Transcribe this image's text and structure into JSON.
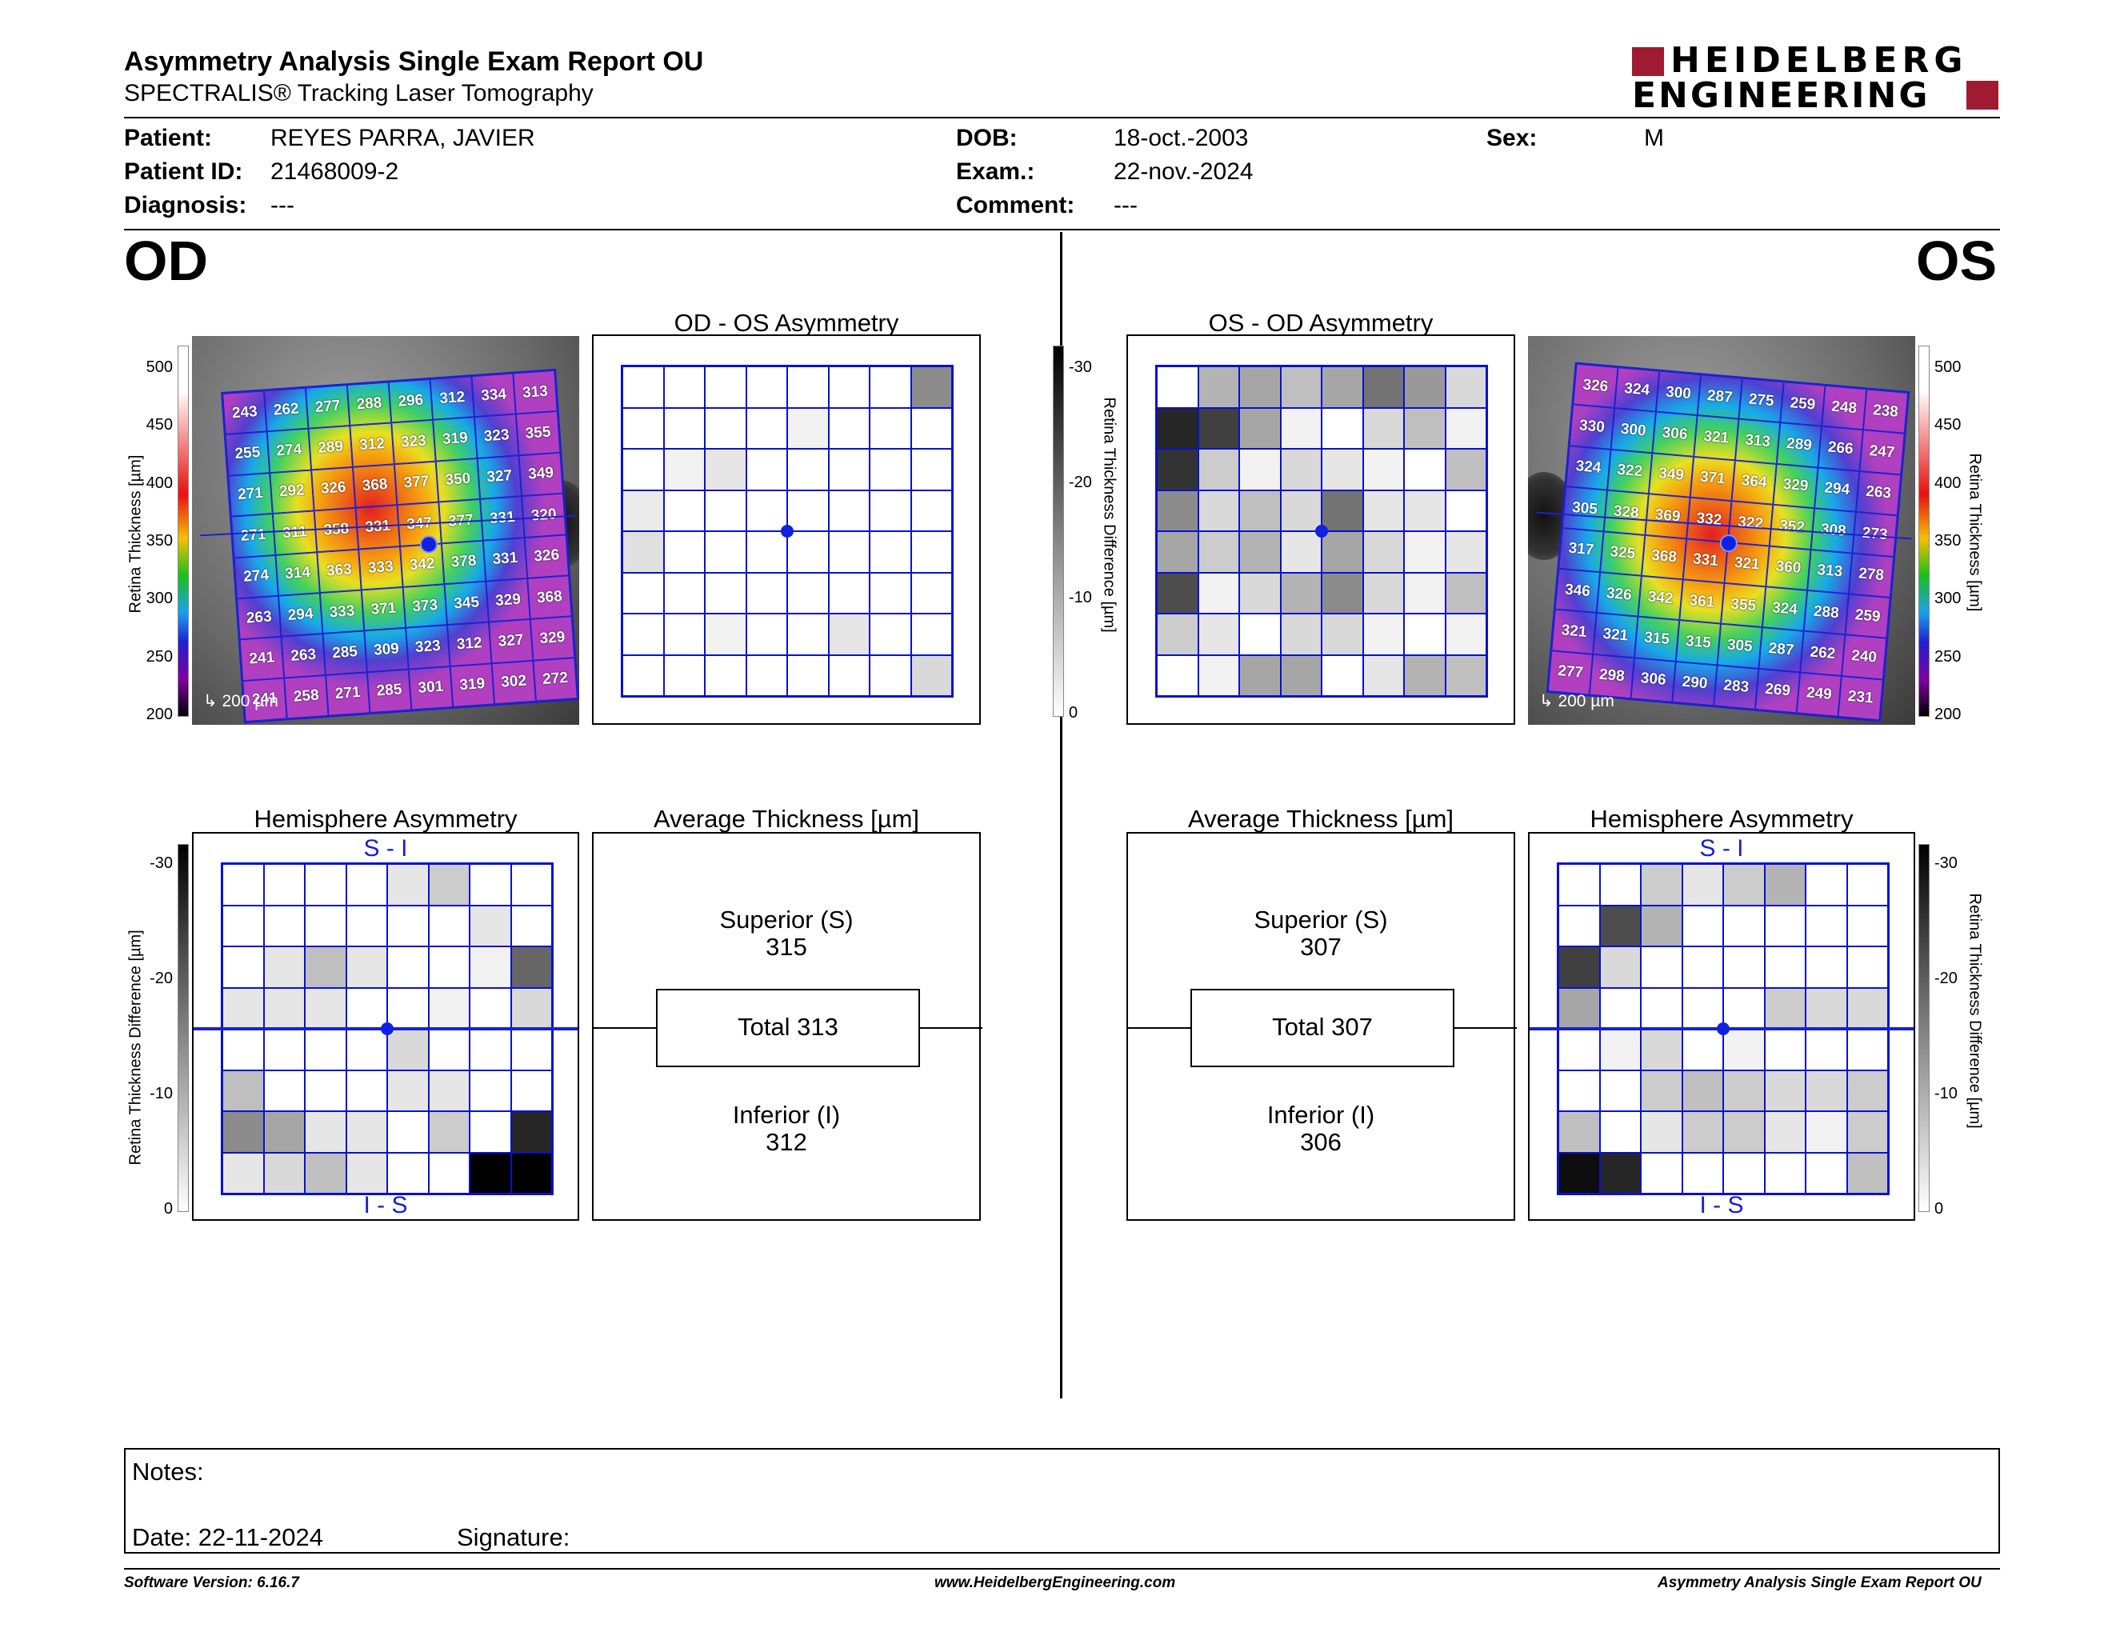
{
  "header": {
    "title": "Asymmetry Analysis Single Exam Report OU",
    "subtitle": "SPECTRALIS® Tracking Laser Tomography",
    "logo_line1": "HEIDELBERG",
    "logo_line2": "ENGINEERING"
  },
  "patient": {
    "patient_label": "Patient:",
    "patient_value": "REYES PARRA, JAVIER",
    "id_label": "Patient ID:",
    "id_value": "21468009-2",
    "diagnosis_label": "Diagnosis:",
    "diagnosis_value": "---",
    "dob_label": "DOB:",
    "dob_value": "18-oct.-2003",
    "exam_label": "Exam.:",
    "exam_value": "22-nov.-2024",
    "comment_label": "Comment:",
    "comment_value": "---",
    "sex_label": "Sex:",
    "sex_value": "M"
  },
  "eyes": {
    "left": "OD",
    "right": "OS"
  },
  "panels": {
    "od_os_title": "OD - OS Asymmetry",
    "os_od_title": "OS - OD Asymmetry",
    "hemi_title": "Hemisphere Asymmetry",
    "avg_title": "Average Thickness [µm]",
    "s_i": "S - I",
    "i_s": "I - S"
  },
  "scales": {
    "thickness_label": "Retina Thickness [µm]",
    "thickness_ticks": [
      "500",
      "450",
      "400",
      "350",
      "300",
      "250",
      "200"
    ],
    "diff_label": "Retina Thickness Difference [µm]",
    "diff_ticks": [
      "-30",
      "-20",
      "-10",
      "0"
    ],
    "scalebar": "200 µm"
  },
  "od": {
    "thickness_grid": [
      [
        243,
        262,
        277,
        288,
        296,
        312,
        334,
        313
      ],
      [
        255,
        274,
        289,
        312,
        323,
        319,
        323,
        355
      ],
      [
        271,
        292,
        326,
        368,
        377,
        350,
        327,
        349
      ],
      [
        271,
        311,
        358,
        331,
        347,
        377,
        331,
        320
      ],
      [
        274,
        314,
        363,
        333,
        342,
        378,
        331,
        326
      ],
      [
        263,
        294,
        333,
        371,
        373,
        345,
        329,
        368
      ],
      [
        241,
        263,
        285,
        309,
        323,
        312,
        327,
        329
      ],
      [
        241,
        258,
        271,
        285,
        301,
        319,
        302,
        272
      ]
    ],
    "asymmetry_shade": [
      [
        0,
        0,
        0,
        0,
        0,
        0,
        0,
        0.45
      ],
      [
        0,
        0,
        0,
        0,
        0.05,
        0,
        0,
        0
      ],
      [
        0,
        0.05,
        0.1,
        0,
        0,
        0,
        0,
        0
      ],
      [
        0.08,
        0,
        0,
        0,
        0,
        0,
        0,
        0
      ],
      [
        0.12,
        0,
        0,
        0,
        0,
        0,
        0,
        0
      ],
      [
        0,
        0,
        0,
        0,
        0,
        0,
        0,
        0
      ],
      [
        0,
        0,
        0.05,
        0,
        0,
        0.1,
        0,
        0
      ],
      [
        0,
        0,
        0,
        0,
        0,
        0,
        0,
        0.15
      ]
    ],
    "hemi_shade": [
      [
        0,
        0,
        0,
        0,
        0.1,
        0.2,
        0,
        0
      ],
      [
        0,
        0,
        0,
        0,
        0,
        0,
        0.1,
        0
      ],
      [
        0,
        0.1,
        0.25,
        0.1,
        0,
        0,
        0.05,
        0.6
      ],
      [
        0.1,
        0.1,
        0.1,
        0,
        0,
        0.05,
        0,
        0.15
      ],
      [
        0,
        0,
        0,
        0,
        0.15,
        0,
        0,
        0
      ],
      [
        0.25,
        0,
        0,
        0,
        0.1,
        0.1,
        0,
        0
      ],
      [
        0.45,
        0.35,
        0.1,
        0.1,
        0,
        0.2,
        0,
        0.85
      ],
      [
        0.1,
        0.15,
        0.25,
        0.1,
        0,
        0,
        1,
        1
      ]
    ],
    "avg": {
      "superior_label": "Superior (S)",
      "superior_value": "315",
      "total": "Total 313",
      "inferior_label": "Inferior (I)",
      "inferior_value": "312"
    }
  },
  "os": {
    "thickness_grid": [
      [
        326,
        324,
        300,
        287,
        275,
        259,
        248,
        238
      ],
      [
        330,
        300,
        306,
        321,
        313,
        289,
        266,
        247
      ],
      [
        324,
        322,
        349,
        371,
        364,
        329,
        294,
        263
      ],
      [
        305,
        328,
        369,
        332,
        322,
        352,
        308,
        273
      ],
      [
        317,
        325,
        368,
        331,
        321,
        360,
        313,
        278
      ],
      [
        346,
        326,
        342,
        361,
        355,
        324,
        288,
        259
      ],
      [
        321,
        321,
        315,
        315,
        305,
        287,
        262,
        240
      ],
      [
        277,
        298,
        306,
        290,
        283,
        269,
        249,
        231
      ]
    ],
    "asymmetry_shade": [
      [
        0,
        0.3,
        0.35,
        0.25,
        0.35,
        0.55,
        0.4,
        0.15
      ],
      [
        0.85,
        0.75,
        0.35,
        0.05,
        0,
        0.15,
        0.25,
        0.05
      ],
      [
        0.8,
        0.2,
        0.05,
        0.15,
        0.1,
        0.05,
        0,
        0.25
      ],
      [
        0.45,
        0.15,
        0.25,
        0.15,
        0.55,
        0.1,
        0.1,
        0
      ],
      [
        0.35,
        0.2,
        0.3,
        0.1,
        0.35,
        0.15,
        0.05,
        0.1
      ],
      [
        0.7,
        0.05,
        0.15,
        0.3,
        0.45,
        0.15,
        0.05,
        0.25
      ],
      [
        0.2,
        0.1,
        0,
        0.15,
        0.15,
        0.05,
        0,
        0.05
      ],
      [
        0,
        0.05,
        0.35,
        0.35,
        0,
        0.1,
        0.3,
        0.25
      ]
    ],
    "hemi_shade": [
      [
        0,
        0,
        0.2,
        0.1,
        0.2,
        0.3,
        0,
        0
      ],
      [
        0,
        0.7,
        0.3,
        0,
        0,
        0,
        0,
        0
      ],
      [
        0.75,
        0.15,
        0,
        0,
        0,
        0,
        0,
        0
      ],
      [
        0.35,
        0,
        0,
        0,
        0,
        0.2,
        0.15,
        0.15
      ],
      [
        0,
        0.05,
        0.15,
        0,
        0.05,
        0,
        0,
        0
      ],
      [
        0,
        0,
        0.2,
        0.25,
        0.2,
        0.15,
        0.15,
        0.2
      ],
      [
        0.25,
        0,
        0.1,
        0.2,
        0.2,
        0.1,
        0.05,
        0.2
      ],
      [
        0.95,
        0.85,
        0,
        0,
        0,
        0,
        0,
        0.25
      ]
    ],
    "avg": {
      "superior_label": "Superior (S)",
      "superior_value": "307",
      "total": "Total 307",
      "inferior_label": "Inferior (I)",
      "inferior_value": "306"
    }
  },
  "notes": {
    "label": "Notes:",
    "date": "Date: 22-11-2024",
    "signature": "Signature:"
  },
  "footer": {
    "software": "Software Version: 6.16.7",
    "url": "www.HeidelbergEngineering.com",
    "report": "Asymmetry Analysis Single Exam Report OU"
  },
  "colors": {
    "grid_blue": "#0a10d0",
    "logo_red": "#9e1b32"
  }
}
